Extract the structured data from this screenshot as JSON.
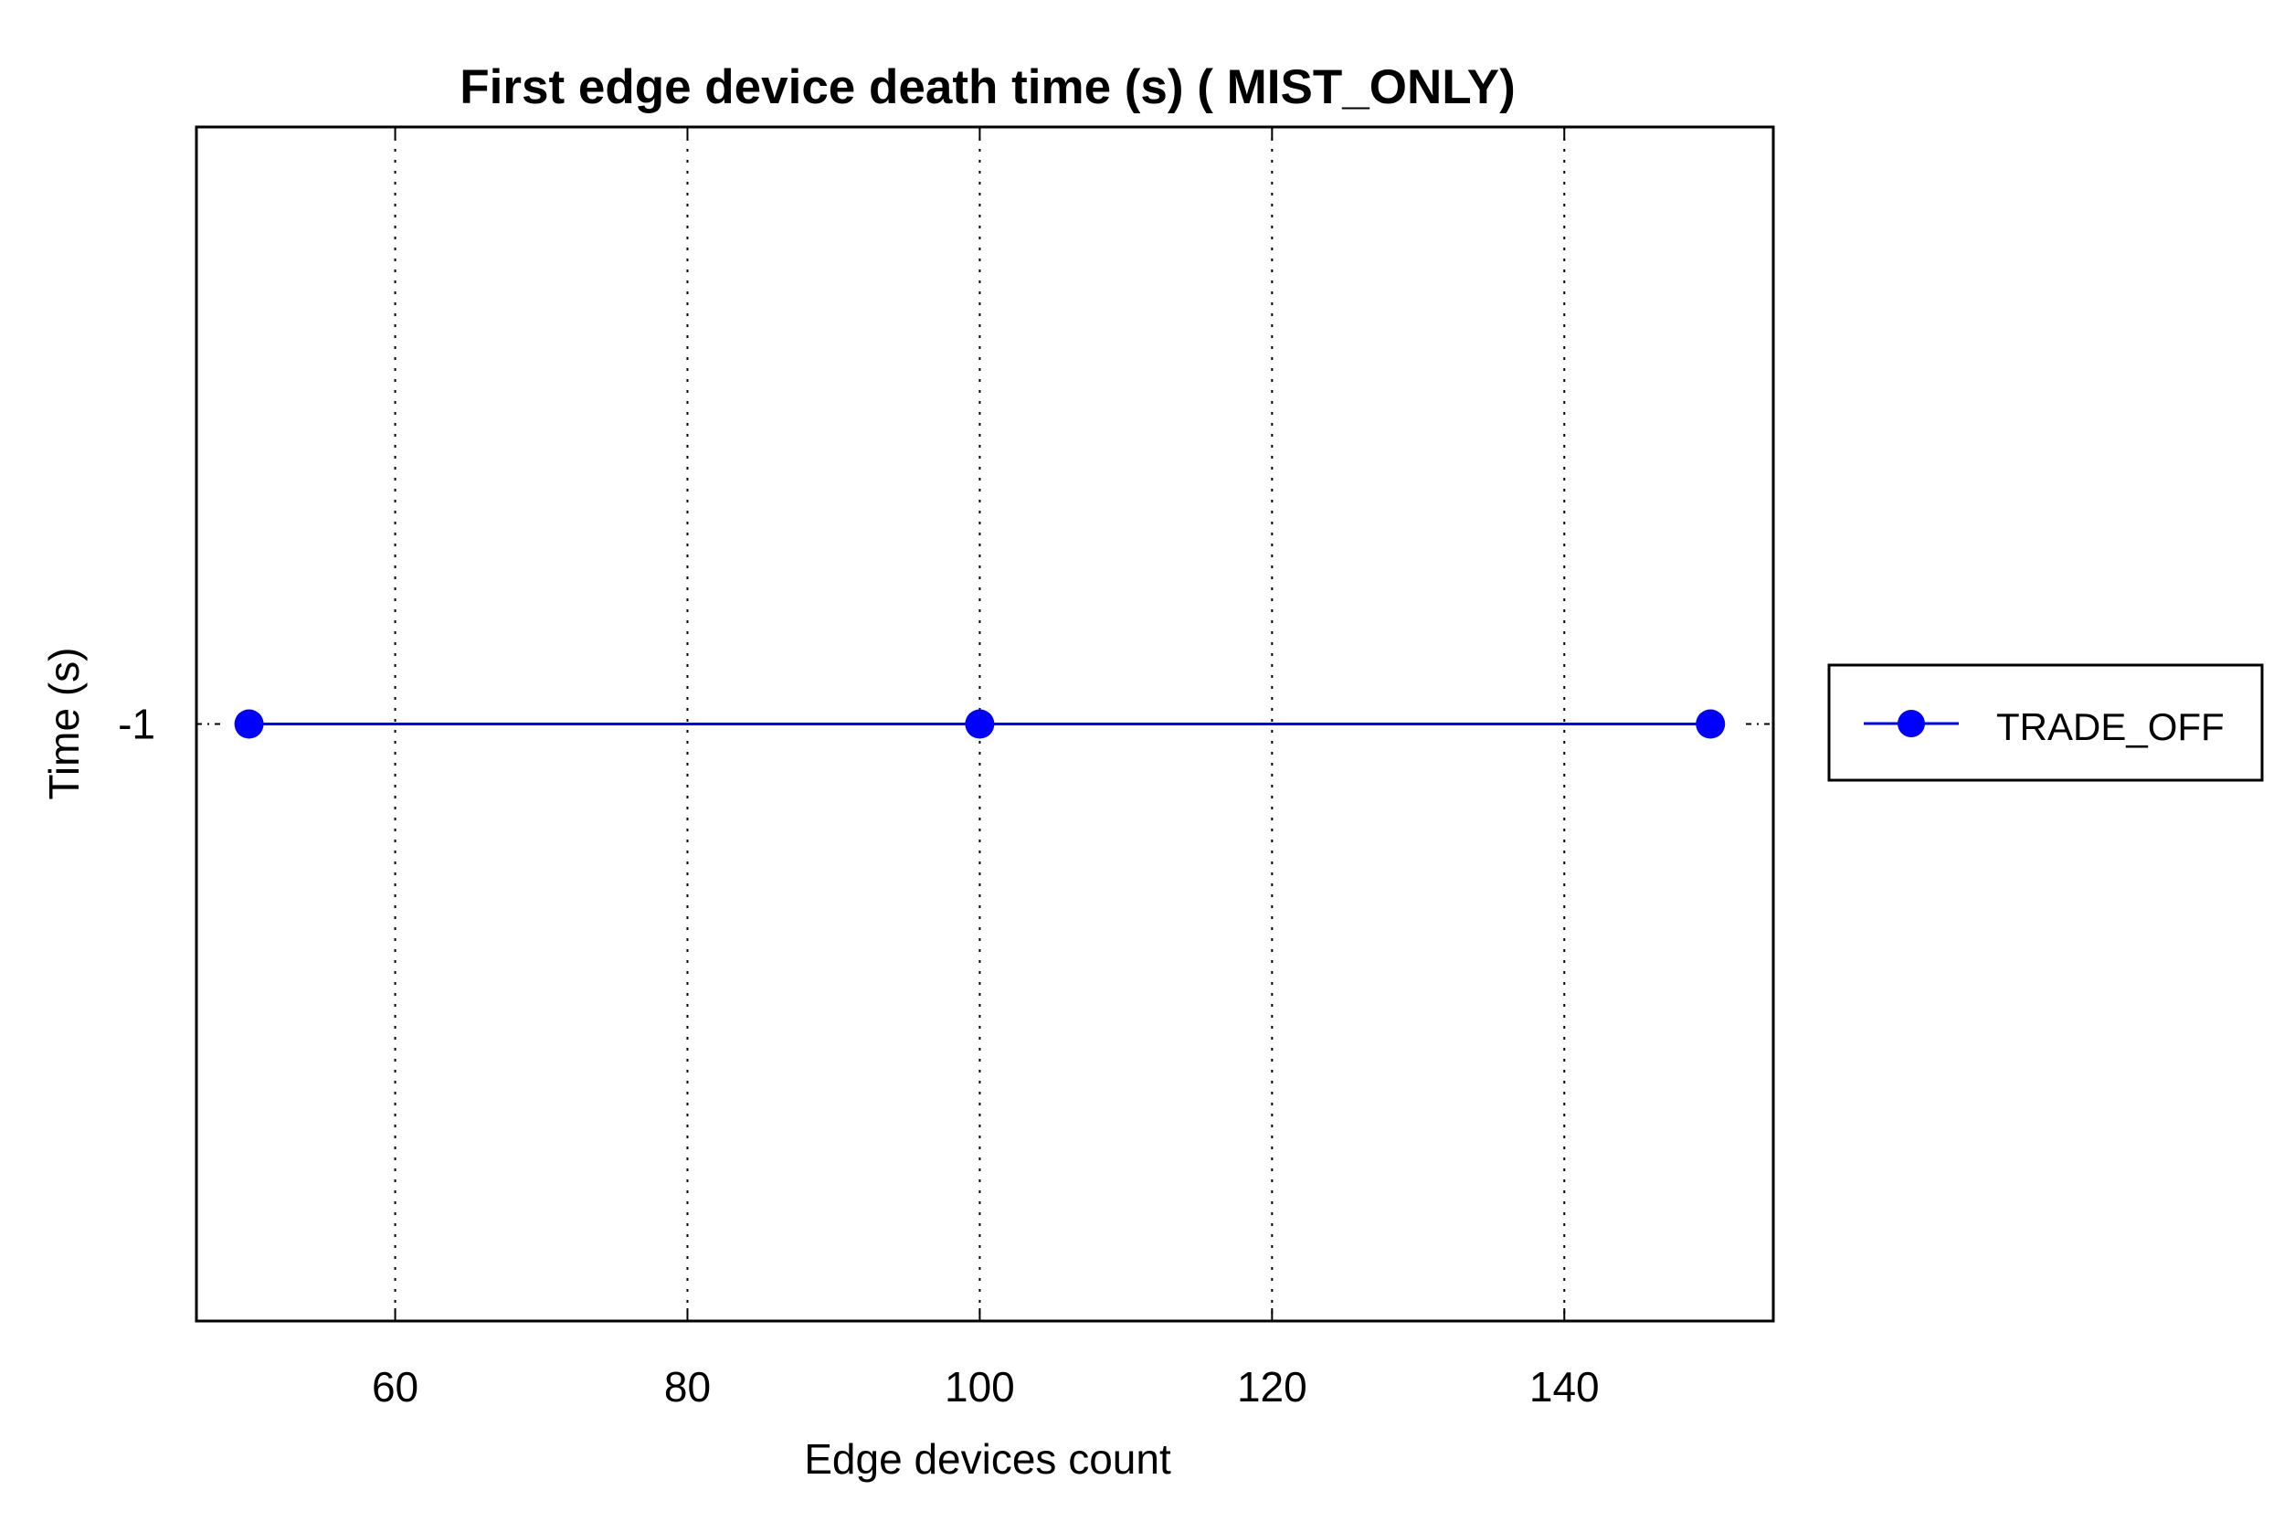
{
  "chart_data": {
    "type": "line",
    "title": "First edge device death time (s) ( MIST_ONLY)",
    "xlabel": "Edge devices count",
    "ylabel": "Time (s)",
    "xlim": [
      46.4,
      154.3
    ],
    "ylim": [
      -2,
      0
    ],
    "xticks": [
      60,
      80,
      100,
      120,
      140
    ],
    "xtick_labels": [
      "60",
      "80",
      "100",
      "120",
      "140"
    ],
    "yticks": [
      -1
    ],
    "ytick_labels": [
      "-1"
    ],
    "grid": "x-dotted",
    "legend_position": "outside-right",
    "series": [
      {
        "name": "TRADE_OFF",
        "color": "#0000ff",
        "marker": "circle",
        "x": [
          50,
          100,
          150
        ],
        "y": [
          -1,
          -1,
          -1
        ]
      }
    ]
  }
}
